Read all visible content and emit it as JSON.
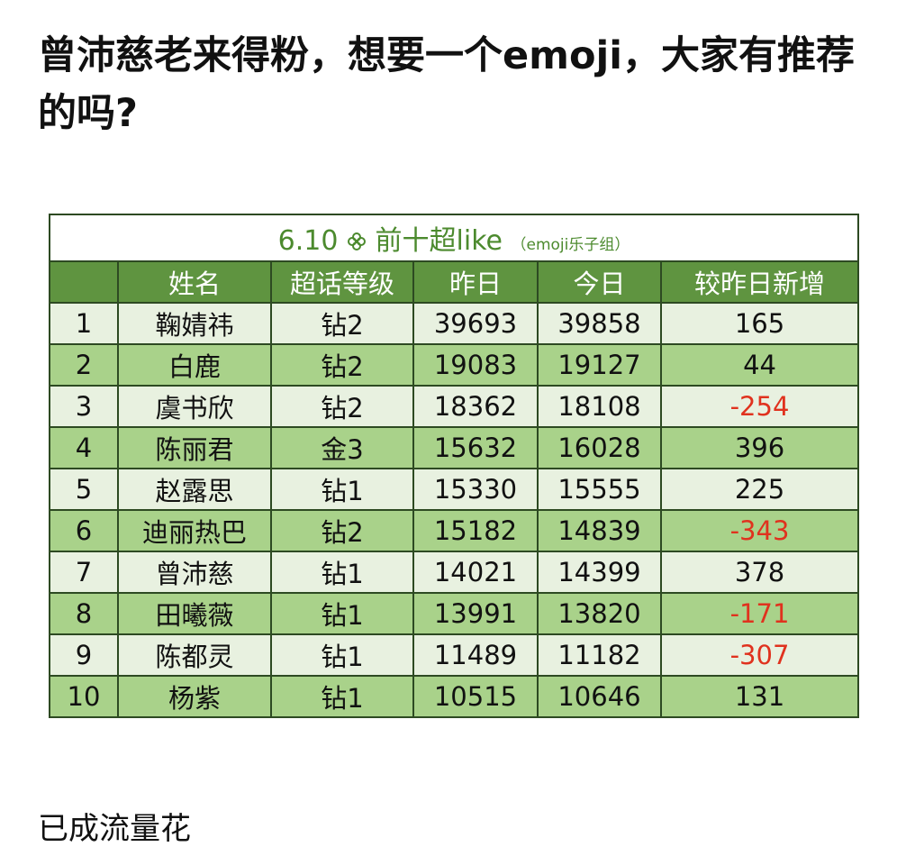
{
  "post": {
    "title": "曾沛慈老来得粉，想要一个emoji，大家有推荐的吗?",
    "footer": "已成流量花"
  },
  "table": {
    "caption": {
      "date": "6.10",
      "title": "前十超like",
      "note": "（emoji乐子组）"
    },
    "headers": [
      "姓名",
      "超话等级",
      "昨日",
      "今日",
      "较昨日新增"
    ],
    "rows": [
      [
        1,
        "鞠婧祎",
        "钻2",
        39693,
        39858,
        165
      ],
      [
        2,
        "白鹿",
        "钻2",
        19083,
        19127,
        44
      ],
      [
        3,
        "虞书欣",
        "钻2",
        18362,
        18108,
        -254
      ],
      [
        4,
        "陈丽君",
        "金3",
        15632,
        16028,
        396
      ],
      [
        5,
        "赵露思",
        "钻1",
        15330,
        15555,
        225
      ],
      [
        6,
        "迪丽热巴",
        "钻2",
        15182,
        14839,
        -343
      ],
      [
        7,
        "曾沛慈",
        "钻1",
        14021,
        14399,
        378
      ],
      [
        8,
        "田曦薇",
        "钻1",
        13991,
        13820,
        -171
      ],
      [
        9,
        "陈都灵",
        "钻1",
        11489,
        11182,
        -307
      ],
      [
        10,
        "杨紫",
        "钻1",
        10515,
        10646,
        131
      ]
    ]
  }
}
